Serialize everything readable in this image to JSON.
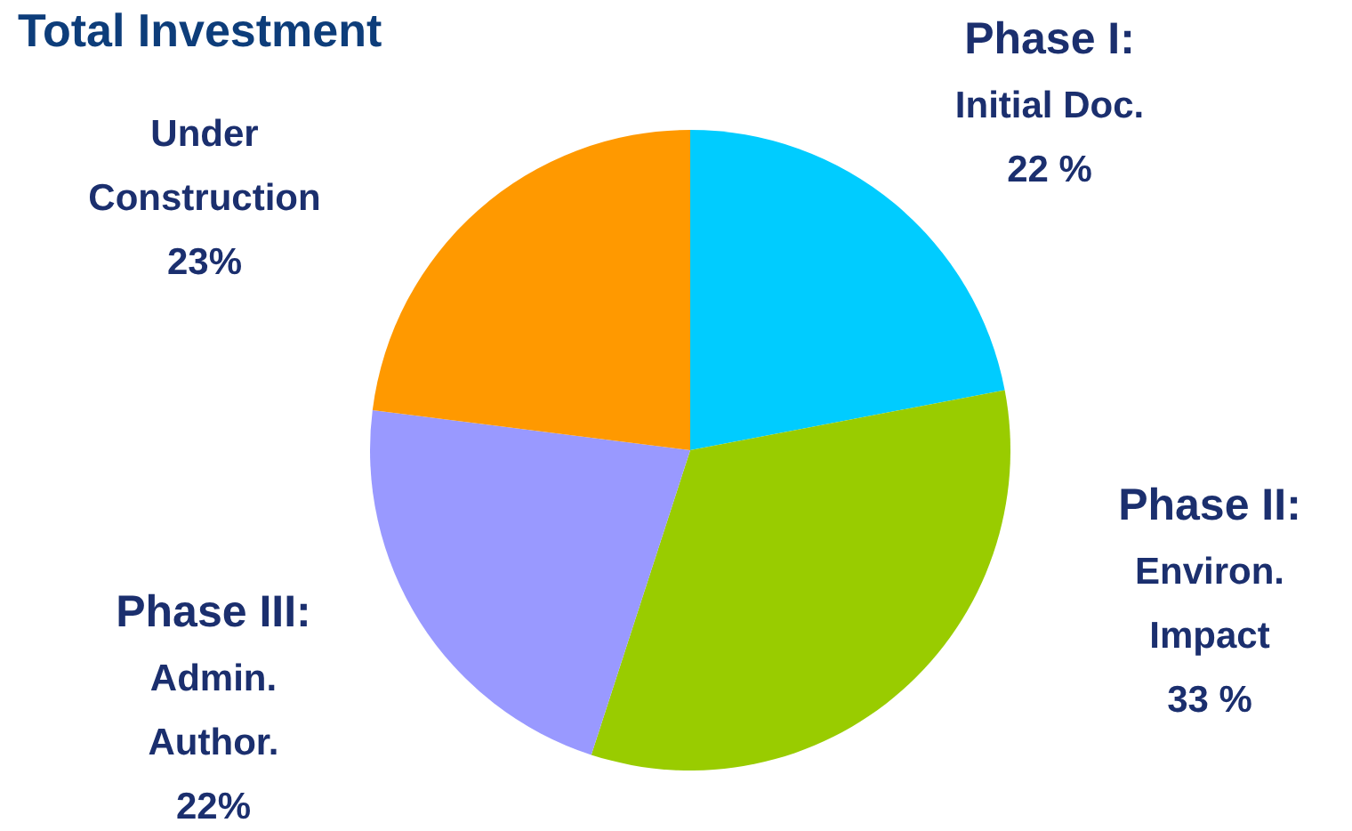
{
  "chart_data": {
    "type": "pie",
    "title": "Total Investment",
    "categories": [
      "Phase I:\nInitial Doc.",
      "Phase II:\nEnviron.\nImpact",
      "Phase III:\nAdmin.\nAuthor.",
      "Under\nConstruction"
    ],
    "values": [
      22,
      33,
      22,
      23
    ],
    "value_labels": [
      "22 %",
      "33 %",
      "22%",
      "23%"
    ],
    "colors": [
      "#00ccff",
      "#99cc00",
      "#9999ff",
      "#ff9900"
    ]
  }
}
